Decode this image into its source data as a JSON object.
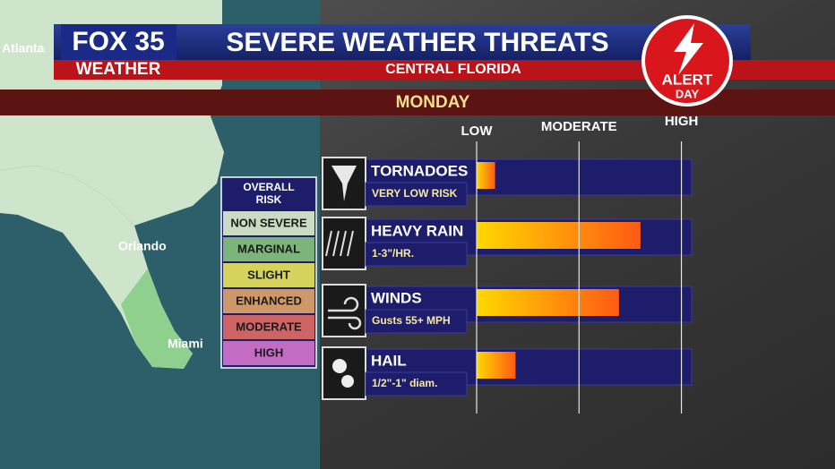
{
  "header": {
    "logo_top": "FOX 35",
    "logo_bottom": "WEATHER",
    "title": "SEVERE WEATHER THREATS",
    "subtitle": "CENTRAL FLORIDA",
    "day": "MONDAY",
    "badge_top": "ALERT",
    "badge_bottom": "DAY"
  },
  "map": {
    "labels": [
      "Atlanta",
      "Orlando",
      "Miami"
    ]
  },
  "risk_legend": {
    "title": "OVERALL RISK",
    "levels": [
      {
        "label": "NON SEVERE",
        "color": "#c9dcc3"
      },
      {
        "label": "MARGINAL",
        "color": "#7db47a"
      },
      {
        "label": "SLIGHT",
        "color": "#d6d35c"
      },
      {
        "label": "ENHANCED",
        "color": "#cf9868"
      },
      {
        "label": "MODERATE",
        "color": "#cf6464"
      },
      {
        "label": "HIGH",
        "color": "#c36cc3"
      }
    ]
  },
  "chart_data": {
    "type": "bar",
    "orientation": "horizontal",
    "categories": [
      "TORNADOES",
      "HEAVY RAIN",
      "WINDS",
      "HAIL"
    ],
    "category_notes": [
      "VERY LOW RISK",
      "1-3\"/HR.",
      "Gusts 55+ MPH",
      "1/2\"-1\" diam."
    ],
    "values": [
      0.18,
      1.6,
      1.39,
      0.38
    ],
    "color": "#ffd800",
    "xlim": [
      0,
      2.1
    ],
    "xticks": [
      {
        "value": 0,
        "label": "LOW"
      },
      {
        "value": 1,
        "label": "MODERATE"
      },
      {
        "value": 2,
        "label": "HIGH"
      }
    ],
    "grid": true
  }
}
